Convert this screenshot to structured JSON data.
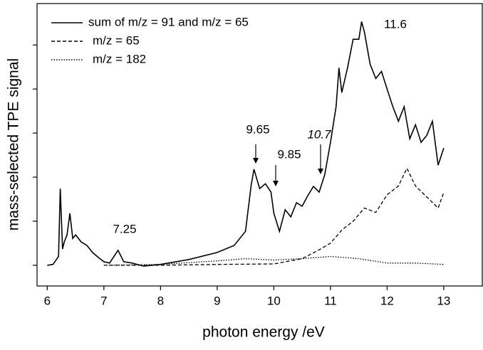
{
  "chart_data": {
    "type": "line",
    "xlabel": "photon energy /eV",
    "ylabel": "mass-selected TPE signal",
    "xlim": [
      5.82,
      13.68
    ],
    "xticks": [
      6,
      7,
      8,
      9,
      10,
      11,
      12,
      13
    ],
    "ylim": [
      -0.47,
      5.94
    ],
    "yticks": [
      0,
      1,
      2,
      3,
      4,
      5
    ],
    "legend": "upper left",
    "annotations": [
      "7.25",
      "9.65",
      "9.85",
      "10.7",
      "11.6"
    ],
    "series": [
      {
        "name": "sum of m/z = 91 and m/z = 65",
        "color": "#000000",
        "linestyle": "solid",
        "x": [
          6.0,
          6.1,
          6.2,
          6.23,
          6.27,
          6.3,
          6.35,
          6.4,
          6.45,
          6.5,
          6.6,
          6.7,
          6.8,
          6.9,
          7.0,
          7.1,
          7.25,
          7.35,
          7.5,
          7.7,
          8.0,
          8.5,
          9.0,
          9.3,
          9.5,
          9.6,
          9.65,
          9.75,
          9.85,
          9.95,
          10.0,
          10.1,
          10.2,
          10.3,
          10.4,
          10.5,
          10.6,
          10.7,
          10.8,
          10.9,
          11.0,
          11.1,
          11.15,
          11.2,
          11.3,
          11.4,
          11.5,
          11.55,
          11.6,
          11.7,
          11.8,
          11.9,
          12.0,
          12.1,
          12.2,
          12.3,
          12.4,
          12.5,
          12.6,
          12.7,
          12.8,
          12.9,
          13.0
        ],
        "values": [
          0,
          0.02,
          0.2,
          1.74,
          0.37,
          0.53,
          0.69,
          1.18,
          0.61,
          0.69,
          0.53,
          0.45,
          0.29,
          0.18,
          0.08,
          0.05,
          0.34,
          0.08,
          0.05,
          -0.02,
          0.02,
          0.13,
          0.29,
          0.45,
          0.77,
          1.82,
          2.18,
          1.74,
          1.85,
          1.66,
          1.18,
          0.77,
          1.26,
          1.1,
          1.42,
          1.34,
          1.58,
          1.79,
          1.66,
          2.06,
          2.79,
          3.6,
          4.48,
          3.92,
          4.48,
          5.13,
          5.13,
          5.53,
          5.29,
          4.56,
          4.24,
          4.4,
          4.0,
          3.6,
          3.27,
          3.6,
          2.87,
          3.19,
          2.79,
          2.95,
          3.27,
          2.27,
          2.66
        ]
      },
      {
        "name": "m/z = 65",
        "color": "#000000",
        "linestyle": "dashed",
        "x": [
          7.0,
          8.0,
          9.0,
          10.0,
          10.5,
          10.8,
          11.0,
          11.2,
          11.4,
          11.6,
          11.8,
          12.0,
          12.2,
          12.35,
          12.5,
          12.7,
          12.9,
          13.0
        ],
        "values": [
          0,
          0,
          0.02,
          0.03,
          0.15,
          0.35,
          0.5,
          0.8,
          1.0,
          1.3,
          1.2,
          1.6,
          1.8,
          2.2,
          1.8,
          1.55,
          1.3,
          1.65
        ]
      },
      {
        "name": "m/z = 182",
        "color": "#000000",
        "linestyle": "dotted",
        "x": [
          7.0,
          8.0,
          9.0,
          9.5,
          10.0,
          10.5,
          11.0,
          11.5,
          12.0,
          12.5,
          13.0
        ],
        "values": [
          0,
          0.02,
          0.1,
          0.15,
          0.12,
          0.15,
          0.2,
          0.15,
          0.05,
          0.05,
          0.02
        ]
      }
    ]
  }
}
